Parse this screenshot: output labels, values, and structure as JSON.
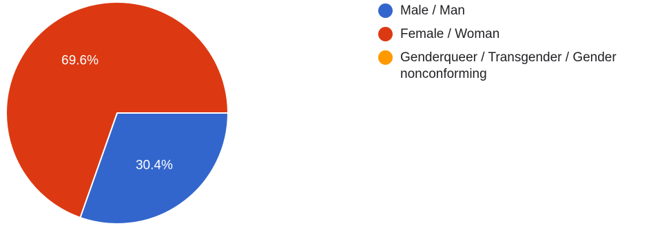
{
  "chart_data": {
    "type": "pie",
    "slices": [
      {
        "label": "Male / Man",
        "value": 30.4,
        "display": "30.4%",
        "color": "#3366cc"
      },
      {
        "label": "Female / Woman",
        "value": 69.6,
        "display": "69.6%",
        "color": "#dc3912"
      },
      {
        "label": "Genderqueer / Transgender / Gender nonconforming",
        "value": 0,
        "display": "",
        "color": "#ff9900"
      }
    ],
    "start_angle": "3 o'clock",
    "direction": "clockwise",
    "legend_position": "right"
  }
}
